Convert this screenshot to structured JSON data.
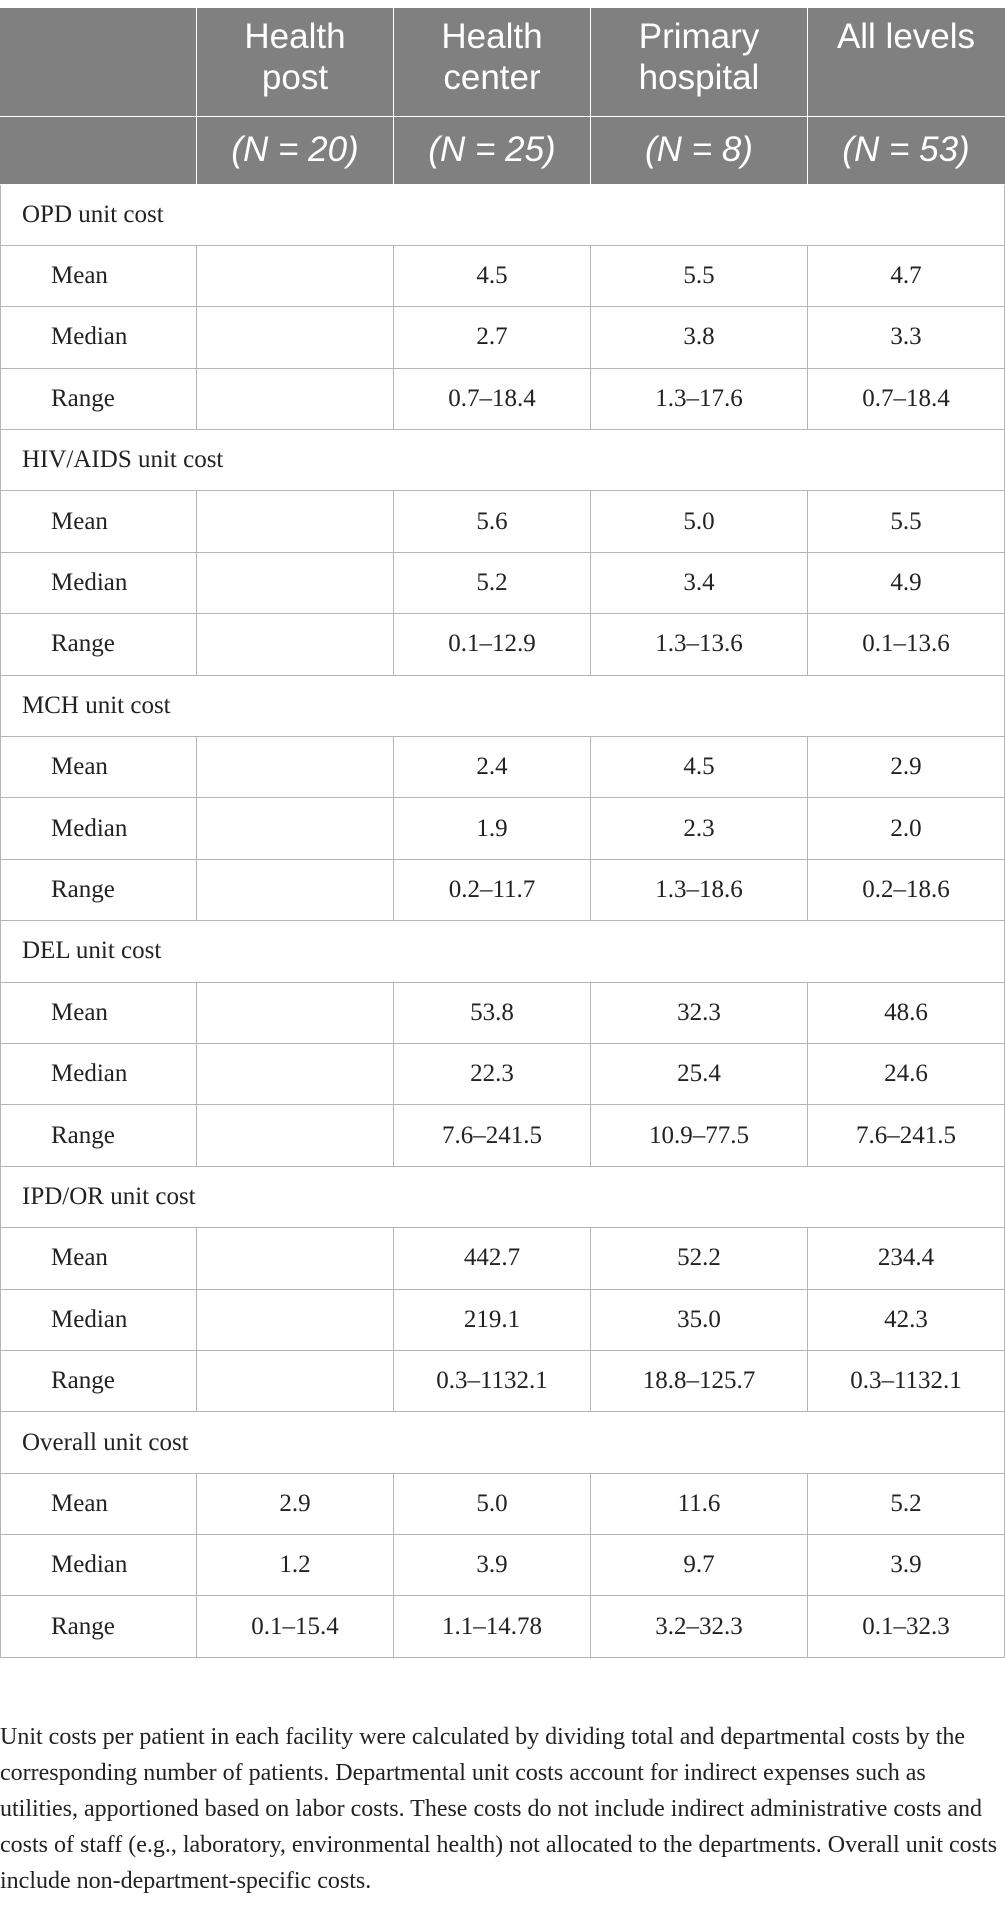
{
  "header": {
    "columns": [
      {
        "name_line1": "",
        "name_line2": "",
        "n": ""
      },
      {
        "name_line1": "Health",
        "name_line2": "post",
        "n": "(N = 20)"
      },
      {
        "name_line1": "Health",
        "name_line2": "center",
        "n": "(N = 25)"
      },
      {
        "name_line1": "Primary",
        "name_line2": "hospital",
        "n": "(N = 8)"
      },
      {
        "name_line1": "All levels",
        "name_line2": "",
        "n": "(N = 53)"
      }
    ]
  },
  "sections": [
    {
      "title": "OPD unit cost",
      "rows": [
        {
          "label": "Mean",
          "health_post": "",
          "health_center": "4.5",
          "primary_hospital": "5.5",
          "all_levels": "4.7"
        },
        {
          "label": "Median",
          "health_post": "",
          "health_center": "2.7",
          "primary_hospital": "3.8",
          "all_levels": "3.3"
        },
        {
          "label": "Range",
          "health_post": "",
          "health_center": "0.7–18.4",
          "primary_hospital": "1.3–17.6",
          "all_levels": "0.7–18.4"
        }
      ]
    },
    {
      "title": "HIV/AIDS unit cost",
      "rows": [
        {
          "label": "Mean",
          "health_post": "",
          "health_center": "5.6",
          "primary_hospital": "5.0",
          "all_levels": "5.5"
        },
        {
          "label": "Median",
          "health_post": "",
          "health_center": "5.2",
          "primary_hospital": "3.4",
          "all_levels": "4.9"
        },
        {
          "label": "Range",
          "health_post": "",
          "health_center": "0.1–12.9",
          "primary_hospital": "1.3–13.6",
          "all_levels": "0.1–13.6"
        }
      ]
    },
    {
      "title": "MCH unit cost",
      "rows": [
        {
          "label": "Mean",
          "health_post": "",
          "health_center": "2.4",
          "primary_hospital": "4.5",
          "all_levels": "2.9"
        },
        {
          "label": "Median",
          "health_post": "",
          "health_center": "1.9",
          "primary_hospital": "2.3",
          "all_levels": "2.0"
        },
        {
          "label": "Range",
          "health_post": "",
          "health_center": "0.2–11.7",
          "primary_hospital": "1.3–18.6",
          "all_levels": "0.2–18.6"
        }
      ]
    },
    {
      "title": "DEL unit cost",
      "rows": [
        {
          "label": "Mean",
          "health_post": "",
          "health_center": "53.8",
          "primary_hospital": "32.3",
          "all_levels": "48.6"
        },
        {
          "label": "Median",
          "health_post": "",
          "health_center": "22.3",
          "primary_hospital": "25.4",
          "all_levels": "24.6"
        },
        {
          "label": "Range",
          "health_post": "",
          "health_center": "7.6–241.5",
          "primary_hospital": "10.9–77.5",
          "all_levels": "7.6–241.5"
        }
      ]
    },
    {
      "title": "IPD/OR unit cost",
      "rows": [
        {
          "label": "Mean",
          "health_post": "",
          "health_center": "442.7",
          "primary_hospital": "52.2",
          "all_levels": "234.4"
        },
        {
          "label": "Median",
          "health_post": "",
          "health_center": "219.1",
          "primary_hospital": "35.0",
          "all_levels": "42.3"
        },
        {
          "label": "Range",
          "health_post": "",
          "health_center": "0.3–1132.1",
          "primary_hospital": "18.8–125.7",
          "all_levels": "0.3–1132.1"
        }
      ]
    },
    {
      "title": "Overall unit cost",
      "rows": [
        {
          "label": "Mean",
          "health_post": "2.9",
          "health_center": "5.0",
          "primary_hospital": "11.6",
          "all_levels": "5.2"
        },
        {
          "label": "Median",
          "health_post": "1.2",
          "health_center": "3.9",
          "primary_hospital": "9.7",
          "all_levels": "3.9"
        },
        {
          "label": "Range",
          "health_post": "0.1–15.4",
          "health_center": "1.1–14.78",
          "primary_hospital": "3.2–32.3",
          "all_levels": "0.1–32.3"
        }
      ]
    }
  ],
  "footnote": "Unit costs per patient in each facility were calculated by dividing total and departmental costs by the corresponding number of patients. Departmental unit costs account for indirect expenses such as utilities, apportioned based on labor costs. These costs do not include indirect administrative costs and costs of staff (e.g., laboratory, environmental health) not allocated to the departments. Overall unit costs include non-department-specific costs.",
  "colors": {
    "header_bg": "#808080",
    "header_text": "#ffffff",
    "grid_line": "#b5b5b5",
    "body_text": "#222222"
  }
}
